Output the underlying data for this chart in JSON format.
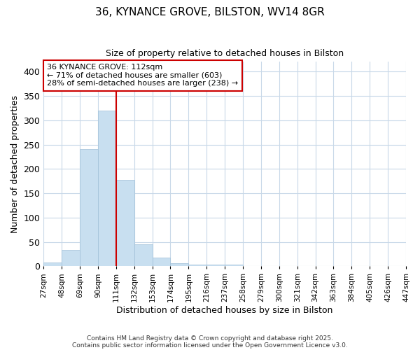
{
  "title1": "36, KYNANCE GROVE, BILSTON, WV14 8GR",
  "title2": "Size of property relative to detached houses in Bilston",
  "xlabel": "Distribution of detached houses by size in Bilston",
  "ylabel": "Number of detached properties",
  "bins": [
    "27sqm",
    "48sqm",
    "69sqm",
    "90sqm",
    "111sqm",
    "132sqm",
    "153sqm",
    "174sqm",
    "195sqm",
    "216sqm",
    "237sqm",
    "258sqm",
    "279sqm",
    "300sqm",
    "321sqm",
    "342sqm",
    "363sqm",
    "384sqm",
    "405sqm",
    "426sqm",
    "447sqm"
  ],
  "values": [
    8,
    33,
    240,
    320,
    178,
    45,
    17,
    6,
    4,
    4,
    3,
    1,
    0,
    0,
    0,
    0,
    1,
    0,
    0,
    0
  ],
  "bar_color": "#c8dff0",
  "bar_edge_color": "#a0c0d8",
  "vline_x_index": 4,
  "vline_color": "#cc0000",
  "annotation_title": "36 KYNANCE GROVE: 112sqm",
  "annotation_line2": "← 71% of detached houses are smaller (603)",
  "annotation_line3": "28% of semi-detached houses are larger (238) →",
  "annotation_box_color": "#cc0000",
  "ylim": [
    0,
    420
  ],
  "yticks": [
    0,
    50,
    100,
    150,
    200,
    250,
    300,
    350,
    400
  ],
  "footer1": "Contains HM Land Registry data © Crown copyright and database right 2025.",
  "footer2": "Contains public sector information licensed under the Open Government Licence v3.0.",
  "bg_color": "#ffffff",
  "grid_color": "#c8d8e8"
}
